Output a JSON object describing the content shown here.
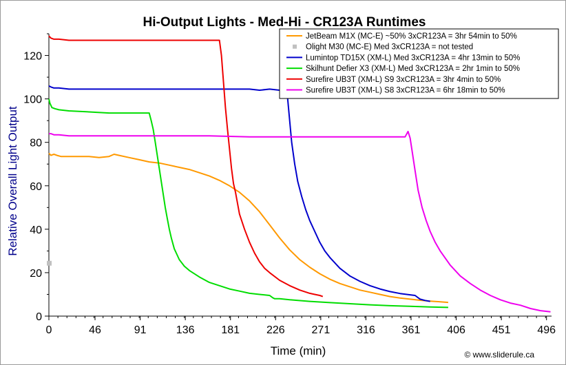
{
  "chart_data": {
    "type": "line",
    "title": "Hi-Output Lights - Med-Hi - CR123A Runtimes",
    "xlabel": "Time (min)",
    "ylabel": "Relative Overall Light Output",
    "xlim": [
      0,
      501
    ],
    "ylim": [
      0,
      130
    ],
    "xticks": [
      0,
      46,
      91,
      136,
      181,
      226,
      271,
      316,
      361,
      406,
      451,
      496
    ],
    "yticks": [
      0,
      20,
      40,
      60,
      80,
      100,
      120
    ],
    "legend_position": "top-right",
    "grid": false,
    "copyright": "© www.sliderule.ca",
    "series": [
      {
        "name": "JetBeam M1X (MC-E) ~50% 3xCR123A = 3hr 54min to 50%",
        "color": "#ff9900",
        "x": [
          0,
          2,
          5,
          8,
          12,
          20,
          30,
          40,
          50,
          60,
          65,
          70,
          80,
          90,
          100,
          110,
          120,
          130,
          140,
          150,
          160,
          170,
          180,
          190,
          200,
          210,
          220,
          230,
          240,
          250,
          260,
          270,
          280,
          290,
          300,
          310,
          320,
          330,
          340,
          350,
          360,
          370,
          380,
          390,
          398
        ],
        "y": [
          75,
          74,
          74.5,
          74,
          73.5,
          73.5,
          73.5,
          73.5,
          73,
          73.5,
          74.5,
          74,
          73,
          72,
          71,
          70.5,
          69.5,
          68.5,
          67.5,
          66,
          64.5,
          62.5,
          60,
          57,
          53,
          48,
          42,
          36,
          30.5,
          26,
          22.5,
          19.5,
          17,
          15,
          13.5,
          12,
          11,
          10,
          9,
          8.3,
          7.8,
          7.3,
          6.9,
          6.6,
          6.3
        ]
      },
      {
        "name": "Olight M30 (MC-E) Med 3xCR123A = not tested",
        "color": "#c0c0c0",
        "x": [
          0
        ],
        "y": [
          24.5
        ]
      },
      {
        "name": "Lumintop TD15X (XM-L) Med 3xCR123A = 4hr 13min to 50%",
        "color": "#0000cc",
        "x": [
          0,
          2,
          5,
          10,
          20,
          40,
          60,
          80,
          100,
          120,
          140,
          160,
          180,
          190,
          200,
          210,
          220,
          230,
          235,
          238,
          240,
          242,
          245,
          248,
          252,
          256,
          260,
          265,
          270,
          275,
          280,
          290,
          300,
          310,
          320,
          330,
          340,
          350,
          360,
          365,
          370,
          375,
          380
        ],
        "y": [
          106,
          105.5,
          105,
          105,
          104.5,
          104.5,
          104.5,
          104.5,
          104.5,
          104.5,
          104.5,
          104.5,
          104.5,
          104.5,
          104.5,
          104,
          104.5,
          104,
          103,
          100,
          90,
          80,
          70,
          62,
          55,
          49,
          44,
          39,
          34,
          30,
          27,
          22,
          18.5,
          16,
          14,
          12.5,
          11.3,
          10.4,
          9.8,
          9.5,
          7.8,
          7.2,
          6.8
        ]
      },
      {
        "name": "Skilhunt Defier X3 (XM-L) Med 3xCR123A = 2hr 1min to 50%",
        "color": "#00dd00",
        "x": [
          0,
          1,
          3,
          6,
          10,
          20,
          40,
          60,
          80,
          95,
          100,
          102,
          104,
          106,
          108,
          110,
          112,
          114,
          116,
          118,
          120,
          122,
          125,
          130,
          135,
          140,
          150,
          160,
          170,
          180,
          190,
          200,
          210,
          220,
          223,
          225,
          230,
          240,
          260,
          280,
          300,
          320,
          340,
          360,
          380,
          398
        ],
        "y": [
          100,
          98,
          96,
          95.5,
          95,
          94.5,
          94,
          93.5,
          93.5,
          93.5,
          93.5,
          90,
          86,
          80,
          74,
          68,
          62,
          56,
          50,
          45,
          40,
          36,
          31,
          26,
          23,
          21,
          18,
          15.5,
          14,
          12.5,
          11.5,
          10.5,
          10,
          9.5,
          8.5,
          8,
          8,
          7.5,
          6.8,
          6.2,
          5.7,
          5.2,
          4.8,
          4.5,
          4.2,
          4
        ]
      },
      {
        "name": "Surefire UB3T (XM-L) S9 3xCR123A = 3hr 4min to 50%",
        "color": "#ee0000",
        "x": [
          0,
          2,
          5,
          10,
          20,
          40,
          60,
          80,
          100,
          120,
          140,
          160,
          170,
          172,
          174,
          176,
          178,
          180,
          182,
          184,
          186,
          188,
          190,
          195,
          200,
          205,
          210,
          215,
          220,
          230,
          240,
          250,
          260,
          265,
          270,
          273
        ],
        "y": [
          129,
          128,
          127.5,
          127.5,
          127,
          127,
          127,
          127,
          127,
          127,
          127,
          127,
          127,
          120,
          108,
          96,
          86,
          77,
          68,
          61,
          57,
          52,
          47,
          40,
          34,
          29,
          25,
          22,
          20,
          16.5,
          14,
          12,
          10.5,
          10,
          9.5,
          9
        ]
      },
      {
        "name": "Surefire UB3T (XM-L) S8 3xCR123A = 6hr 18min to 50%",
        "color": "#ee00ee",
        "x": [
          0,
          2,
          5,
          10,
          20,
          40,
          80,
          120,
          160,
          200,
          240,
          280,
          320,
          350,
          355,
          358,
          360,
          362,
          365,
          368,
          372,
          376,
          380,
          385,
          390,
          400,
          410,
          420,
          430,
          440,
          450,
          460,
          470,
          480,
          490,
          500
        ],
        "y": [
          84,
          84,
          83.5,
          83.5,
          83,
          83,
          83,
          83,
          83,
          82.5,
          82.5,
          82.5,
          82.5,
          82.5,
          82.5,
          85,
          82,
          76,
          67,
          58,
          50,
          44,
          39,
          34,
          30,
          23.5,
          18.5,
          15,
          12,
          9.5,
          7.5,
          6,
          5,
          3.5,
          2.5,
          2
        ]
      }
    ]
  }
}
